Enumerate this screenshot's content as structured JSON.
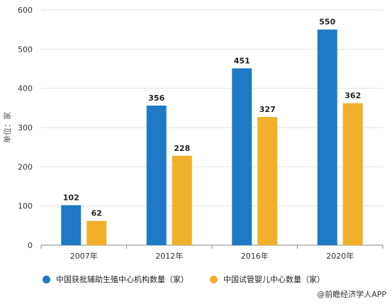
{
  "chart_data": {
    "type": "bar",
    "categories": [
      "2007年",
      "2012年",
      "2016年",
      "2020年"
    ],
    "series": [
      {
        "name": "中国获批辅助生殖中心机构数量（家）",
        "values": [
          102,
          356,
          451,
          550
        ],
        "color": "#1f79c4"
      },
      {
        "name": "中国试管婴儿中心数量（家）",
        "values": [
          62,
          228,
          327,
          362
        ],
        "color": "#f0b02a"
      }
    ],
    "ylabel": "单位：家",
    "ylim": [
      0,
      600
    ],
    "yticks": [
      0,
      100,
      200,
      300,
      400,
      500,
      600
    ],
    "grid": true,
    "legend": "bottom"
  },
  "credit": "@前瞻经济学人APP"
}
